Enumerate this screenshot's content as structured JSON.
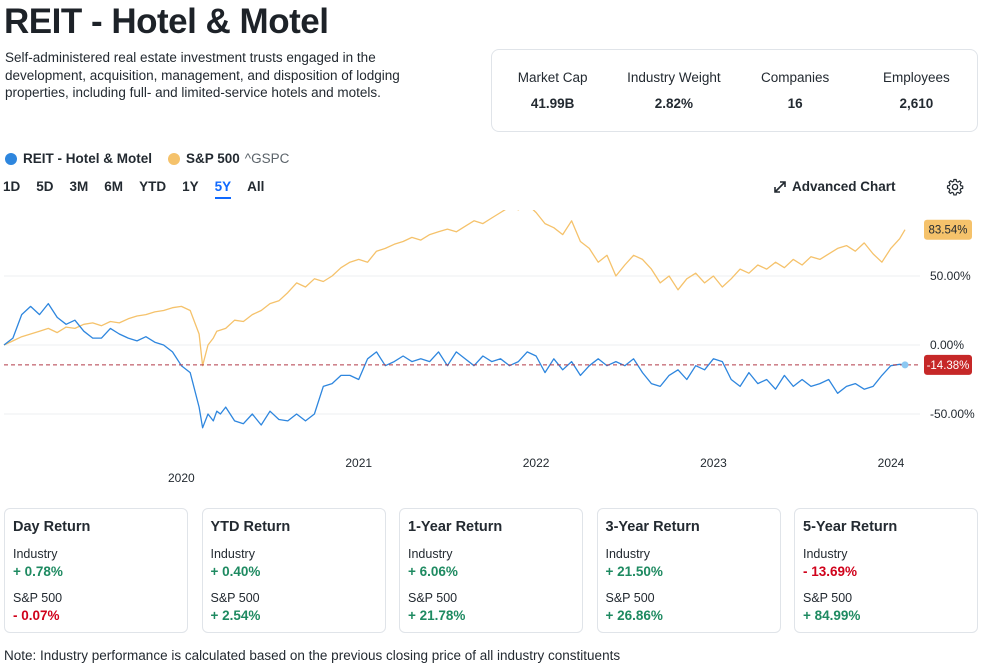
{
  "page": {
    "title": "REIT - Hotel & Motel",
    "description": "Self-administered real estate investment trusts engaged in the development, acquisition, management, and disposition of lodging properties, including full- and limited-service hotels and motels."
  },
  "stats": [
    {
      "label": "Market Cap",
      "value": "41.99B"
    },
    {
      "label": "Industry Weight",
      "value": "2.82%"
    },
    {
      "label": "Companies",
      "value": "16"
    },
    {
      "label": "Employees",
      "value": "2,610"
    }
  ],
  "legend": {
    "series1": "REIT - Hotel & Motel",
    "series2": "S&P 500",
    "series2_symbol": "^GSPC"
  },
  "ranges": [
    "1D",
    "5D",
    "3M",
    "6M",
    "YTD",
    "1Y",
    "5Y",
    "All"
  ],
  "active_range": "5Y",
  "advanced_chart": "Advanced Chart",
  "colors": {
    "industry": "#2e86de",
    "sp500": "#f5c26b",
    "positive": "#1e8a61",
    "negative": "#d0021b",
    "accent": "#0f69ff"
  },
  "chart_data": {
    "type": "line",
    "y_unit": "%",
    "y_ticks": [
      "50.00%",
      "0.00%",
      "-50.00%"
    ],
    "x_ticks": [
      "2020",
      "2021",
      "2022",
      "2023",
      "2024"
    ],
    "end_labels": {
      "sp500": "83.54%",
      "industry": "-14.38%"
    },
    "series": [
      {
        "name": "REIT - Hotel & Motel",
        "x": [
          2019.0,
          2019.05,
          2019.1,
          2019.15,
          2019.2,
          2019.25,
          2019.3,
          2019.35,
          2019.4,
          2019.45,
          2019.5,
          2019.55,
          2019.6,
          2019.65,
          2019.7,
          2019.75,
          2019.8,
          2019.85,
          2019.9,
          2019.95,
          2020.0,
          2020.05,
          2020.1,
          2020.12,
          2020.15,
          2020.18,
          2020.2,
          2020.22,
          2020.25,
          2020.3,
          2020.35,
          2020.4,
          2020.45,
          2020.5,
          2020.55,
          2020.6,
          2020.65,
          2020.7,
          2020.75,
          2020.8,
          2020.85,
          2020.9,
          2020.95,
          2021.0,
          2021.05,
          2021.1,
          2021.15,
          2021.2,
          2021.25,
          2021.3,
          2021.35,
          2021.4,
          2021.45,
          2021.5,
          2021.55,
          2021.6,
          2021.65,
          2021.7,
          2021.75,
          2021.8,
          2021.85,
          2021.9,
          2021.95,
          2022.0,
          2022.05,
          2022.1,
          2022.15,
          2022.2,
          2022.25,
          2022.3,
          2022.35,
          2022.4,
          2022.45,
          2022.5,
          2022.55,
          2022.6,
          2022.65,
          2022.7,
          2022.75,
          2022.8,
          2022.85,
          2022.9,
          2022.95,
          2023.0,
          2023.05,
          2023.1,
          2023.15,
          2023.2,
          2023.25,
          2023.3,
          2023.35,
          2023.4,
          2023.45,
          2023.5,
          2023.55,
          2023.6,
          2023.65,
          2023.7,
          2023.75,
          2023.8,
          2023.85,
          2023.9,
          2023.95,
          2024.0,
          2024.05,
          2024.08
        ],
        "values": [
          0,
          5,
          22,
          28,
          22,
          30,
          20,
          15,
          18,
          10,
          5,
          5,
          12,
          8,
          5,
          3,
          6,
          2,
          0,
          -5,
          -15,
          -20,
          -45,
          -60,
          -50,
          -55,
          -48,
          -50,
          -45,
          -55,
          -57,
          -50,
          -58,
          -48,
          -54,
          -55,
          -50,
          -55,
          -50,
          -30,
          -28,
          -22,
          -22,
          -25,
          -10,
          -5,
          -15,
          -12,
          -8,
          -12,
          -10,
          -12,
          -5,
          -15,
          -5,
          -10,
          -15,
          -8,
          -12,
          -10,
          -15,
          -12,
          -5,
          -8,
          -20,
          -10,
          -18,
          -12,
          -22,
          -15,
          -10,
          -15,
          -12,
          -15,
          -10,
          -20,
          -28,
          -30,
          -22,
          -18,
          -25,
          -15,
          -18,
          -10,
          -12,
          -25,
          -30,
          -20,
          -28,
          -25,
          -32,
          -22,
          -30,
          -25,
          -30,
          -28,
          -25,
          -35,
          -30,
          -28,
          -32,
          -30,
          -22,
          -15,
          -14,
          -14.38
        ]
      },
      {
        "name": "S&P 500",
        "x": [
          2019.0,
          2019.05,
          2019.1,
          2019.15,
          2019.2,
          2019.25,
          2019.3,
          2019.35,
          2019.4,
          2019.45,
          2019.5,
          2019.55,
          2019.6,
          2019.65,
          2019.7,
          2019.75,
          2019.8,
          2019.85,
          2019.9,
          2019.95,
          2020.0,
          2020.05,
          2020.1,
          2020.12,
          2020.15,
          2020.18,
          2020.2,
          2020.25,
          2020.3,
          2020.35,
          2020.4,
          2020.45,
          2020.5,
          2020.55,
          2020.6,
          2020.65,
          2020.7,
          2020.75,
          2020.8,
          2020.85,
          2020.9,
          2020.95,
          2021.0,
          2021.05,
          2021.1,
          2021.15,
          2021.2,
          2021.25,
          2021.3,
          2021.35,
          2021.4,
          2021.45,
          2021.5,
          2021.55,
          2021.6,
          2021.65,
          2021.7,
          2021.75,
          2021.8,
          2021.85,
          2021.9,
          2021.95,
          2022.0,
          2022.05,
          2022.1,
          2022.15,
          2022.2,
          2022.25,
          2022.3,
          2022.35,
          2022.4,
          2022.45,
          2022.5,
          2022.55,
          2022.6,
          2022.65,
          2022.7,
          2022.75,
          2022.8,
          2022.85,
          2022.9,
          2022.95,
          2023.0,
          2023.05,
          2023.1,
          2023.15,
          2023.2,
          2023.25,
          2023.3,
          2023.35,
          2023.4,
          2023.45,
          2023.5,
          2023.55,
          2023.6,
          2023.65,
          2023.7,
          2023.75,
          2023.8,
          2023.85,
          2023.9,
          2023.95,
          2024.0,
          2024.05,
          2024.08
        ],
        "values": [
          0,
          3,
          6,
          8,
          10,
          12,
          9,
          13,
          12,
          15,
          16,
          14,
          17,
          16,
          19,
          21,
          22,
          24,
          25,
          27,
          28,
          25,
          8,
          -15,
          0,
          5,
          10,
          12,
          18,
          17,
          22,
          25,
          30,
          32,
          38,
          45,
          42,
          48,
          46,
          50,
          56,
          60,
          62,
          60,
          68,
          70,
          73,
          75,
          78,
          76,
          80,
          82,
          84,
          82,
          86,
          90,
          88,
          92,
          96,
          100,
          98,
          102,
          96,
          88,
          85,
          80,
          90,
          75,
          70,
          60,
          65,
          50,
          58,
          65,
          62,
          55,
          45,
          50,
          40,
          48,
          52,
          45,
          50,
          42,
          48,
          55,
          52,
          58,
          55,
          60,
          56,
          62,
          58,
          64,
          62,
          66,
          70,
          72,
          68,
          74,
          66,
          60,
          70,
          77,
          83.54
        ]
      }
    ]
  },
  "returns": [
    {
      "title": "Day Return",
      "industry_label": "Industry",
      "industry": "+ 0.78%",
      "industry_sign": "pos",
      "sp_label": "S&P 500",
      "sp": "- 0.07%",
      "sp_sign": "neg"
    },
    {
      "title": "YTD Return",
      "industry_label": "Industry",
      "industry": "+ 0.40%",
      "industry_sign": "pos",
      "sp_label": "S&P 500",
      "sp": "+ 2.54%",
      "sp_sign": "pos"
    },
    {
      "title": "1-Year Return",
      "industry_label": "Industry",
      "industry": "+ 6.06%",
      "industry_sign": "pos",
      "sp_label": "S&P 500",
      "sp": "+ 21.78%",
      "sp_sign": "pos"
    },
    {
      "title": "3-Year Return",
      "industry_label": "Industry",
      "industry": "+ 21.50%",
      "industry_sign": "pos",
      "sp_label": "S&P 500",
      "sp": "+ 26.86%",
      "sp_sign": "pos"
    },
    {
      "title": "5-Year Return",
      "industry_label": "Industry",
      "industry": "- 13.69%",
      "industry_sign": "neg",
      "sp_label": "S&P 500",
      "sp": "+ 84.99%",
      "sp_sign": "pos"
    }
  ],
  "note": "Note: Industry performance is calculated based on the previous closing price of all industry constituents"
}
